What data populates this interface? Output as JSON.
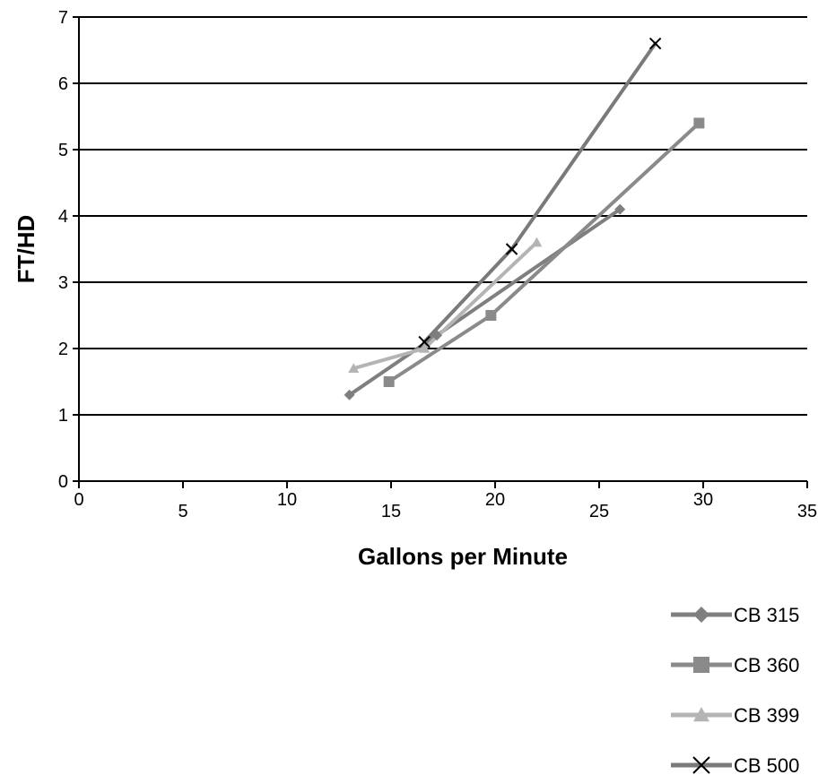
{
  "chart_data": {
    "type": "line",
    "title": "",
    "xlabel": "Gallons per Minute",
    "ylabel": "FT/HD",
    "xlim": [
      0,
      35
    ],
    "ylim": [
      0,
      7
    ],
    "xticks": [
      0,
      5,
      10,
      15,
      20,
      25,
      30,
      35
    ],
    "yticks": [
      0,
      1,
      2,
      3,
      4,
      5,
      6,
      7
    ],
    "grid": "horizontal",
    "legend_position": "bottom-right",
    "series": [
      {
        "name": "CB 315",
        "color": "#7f7f7f",
        "marker": "diamond",
        "points": [
          [
            13,
            1.3
          ],
          [
            17.2,
            2.2
          ],
          [
            26,
            4.1
          ]
        ]
      },
      {
        "name": "CB 360",
        "color": "#8a8a8a",
        "marker": "square",
        "points": [
          [
            14.9,
            1.5
          ],
          [
            19.8,
            2.5
          ],
          [
            29.8,
            5.4
          ]
        ]
      },
      {
        "name": "CB 399",
        "color": "#b4b4b4",
        "marker": "triangle",
        "points": [
          [
            13.2,
            1.7
          ],
          [
            16.6,
            2.0
          ],
          [
            22,
            3.6
          ]
        ]
      },
      {
        "name": "CB 500",
        "color": "#7a7a7a",
        "marker": "x",
        "points": [
          [
            16.6,
            2.1
          ],
          [
            20.8,
            3.5
          ],
          [
            27.7,
            6.6
          ]
        ]
      }
    ]
  }
}
